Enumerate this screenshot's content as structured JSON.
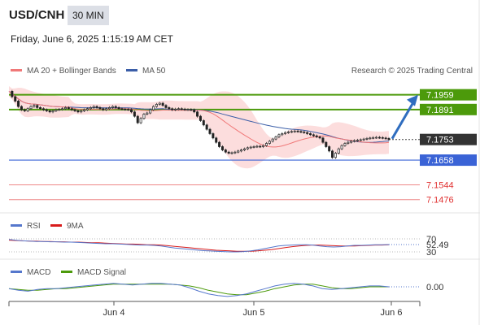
{
  "header": {
    "pair": "USD/CNH",
    "interval": "30 MIN",
    "datetime": "Friday, June 6, 2025 1:15:19 AM CET"
  },
  "legend": {
    "ma20": "MA 20 + Bollinger Bands",
    "ma50": "MA 50",
    "credit": "Research © 2025 Trading Central"
  },
  "colors": {
    "ma20": "#f07878",
    "ma50": "#3b5ea8",
    "green": "#4c9a0b",
    "blue": "#3a63d6",
    "red": "#e03030",
    "band": "#fbd7d7",
    "arrow": "#2f6dbf"
  },
  "chart_data": [
    {
      "type": "candlestick",
      "title": "USD/CNH 30 MIN",
      "ylim": [
        7.143,
        7.204
      ],
      "x_ticks": [
        "Jun 4",
        "Jun 5",
        "Jun 6"
      ],
      "levels": [
        {
          "value": 7.1959,
          "label": "7.1959",
          "kind": "resistance"
        },
        {
          "value": 7.1891,
          "label": "7.1891",
          "kind": "resistance"
        },
        {
          "value": 7.1753,
          "label": "7.1753",
          "kind": "last"
        },
        {
          "value": 7.1658,
          "label": "7.1658",
          "kind": "pivot"
        },
        {
          "value": 7.1544,
          "label": "7.1544",
          "kind": "support"
        },
        {
          "value": 7.1476,
          "label": "7.1476",
          "kind": "support"
        }
      ],
      "close_path": [
        7.1975,
        7.195,
        7.193,
        7.1905,
        7.189,
        7.1885,
        7.1895,
        7.1905,
        7.191,
        7.19,
        7.1895,
        7.189,
        7.1885,
        7.188,
        7.1885,
        7.189,
        7.1892,
        7.1895,
        7.19,
        7.1895,
        7.189,
        7.1885,
        7.188,
        7.1885,
        7.189,
        7.1895,
        7.19,
        7.1905,
        7.19,
        7.1895,
        7.189,
        7.1895,
        7.19,
        7.1905,
        7.19,
        7.1895,
        7.1893,
        7.1892,
        7.1891,
        7.188,
        7.186,
        7.183,
        7.185,
        7.187,
        7.1875,
        7.189,
        7.1905,
        7.1915,
        7.192,
        7.191,
        7.19,
        7.1895,
        7.189,
        7.1893,
        7.1895,
        7.1893,
        7.1891,
        7.1891,
        7.189,
        7.188,
        7.186,
        7.184,
        7.182,
        7.18,
        7.178,
        7.176,
        7.174,
        7.172,
        7.1705,
        7.1695,
        7.169,
        7.1692,
        7.1695,
        7.17,
        7.1705,
        7.171,
        7.1715,
        7.1718,
        7.172,
        7.1722,
        7.172,
        7.1725,
        7.1735,
        7.1745,
        7.1755,
        7.1765,
        7.1775,
        7.178,
        7.1785,
        7.1788,
        7.179,
        7.1792,
        7.179,
        7.1788,
        7.1785,
        7.178,
        7.1775,
        7.177,
        7.1765,
        7.176,
        7.174,
        7.172,
        7.17,
        7.167,
        7.169,
        7.171,
        7.1725,
        7.1735,
        7.174,
        7.1745,
        7.1748,
        7.175,
        7.1752,
        7.1755,
        7.1758,
        7.176,
        7.1762,
        7.1763,
        7.1762,
        7.176,
        7.1758,
        7.1753
      ]
    },
    {
      "type": "line",
      "title": "RSI",
      "series": [
        {
          "name": "RSI"
        },
        {
          "name": "9MA"
        }
      ],
      "ylim": [
        20,
        80
      ],
      "ticks": [
        70,
        30
      ],
      "last_label": "52.49",
      "rsi": [
        68,
        66,
        64,
        63,
        62,
        62,
        61,
        61,
        60,
        60,
        59,
        58,
        57,
        56,
        55,
        55,
        54,
        53,
        52,
        51,
        51,
        50,
        48,
        45,
        42,
        40,
        38,
        36,
        34,
        33,
        32,
        31,
        30,
        30,
        31,
        33,
        36,
        40,
        44,
        48,
        50,
        51,
        52,
        52,
        51,
        48,
        46,
        45,
        46,
        48,
        50,
        50,
        51,
        52,
        52,
        52.49
      ],
      "ma9": [
        66,
        65,
        64,
        63,
        63,
        62,
        62,
        61,
        61,
        60,
        60,
        59,
        58,
        58,
        57,
        56,
        55,
        54,
        54,
        53,
        52,
        52,
        51,
        49,
        47,
        45,
        43,
        41,
        39,
        37,
        35,
        34,
        33,
        32,
        32,
        32,
        33,
        35,
        37,
        40,
        43,
        46,
        48,
        50,
        51,
        51,
        50,
        49,
        48,
        48,
        48,
        49,
        50,
        51,
        51,
        52
      ]
    },
    {
      "type": "line",
      "title": "MACD",
      "series": [
        {
          "name": "MACD"
        },
        {
          "name": "MACD Signal"
        }
      ],
      "ylim": [
        -1.2,
        1.2
      ],
      "last_label": "0.00",
      "macd": [
        -0.2,
        -0.4,
        -0.5,
        -0.3,
        -0.2,
        -0.2,
        -0.1,
        0.0,
        0.1,
        0.2,
        0.3,
        0.4,
        0.3,
        0.2,
        0.3,
        0.4,
        0.4,
        0.3,
        0.2,
        -0.1,
        -0.5,
        -0.8,
        -1.0,
        -1.1,
        -1.0,
        -0.8,
        -0.5,
        -0.2,
        0.1,
        0.3,
        0.4,
        0.3,
        0.1,
        -0.2,
        -0.3,
        -0.2,
        -0.1,
        0.0,
        0.1,
        0.1,
        0.0
      ],
      "signal": [
        -0.2,
        -0.3,
        -0.4,
        -0.4,
        -0.3,
        -0.2,
        -0.2,
        -0.1,
        0.0,
        0.1,
        0.2,
        0.3,
        0.3,
        0.3,
        0.3,
        0.3,
        0.3,
        0.3,
        0.2,
        0.1,
        -0.1,
        -0.4,
        -0.6,
        -0.8,
        -0.9,
        -0.9,
        -0.7,
        -0.5,
        -0.2,
        0.0,
        0.2,
        0.3,
        0.3,
        0.1,
        -0.1,
        -0.2,
        -0.2,
        -0.1,
        0.0,
        0.0,
        0.0
      ]
    }
  ]
}
